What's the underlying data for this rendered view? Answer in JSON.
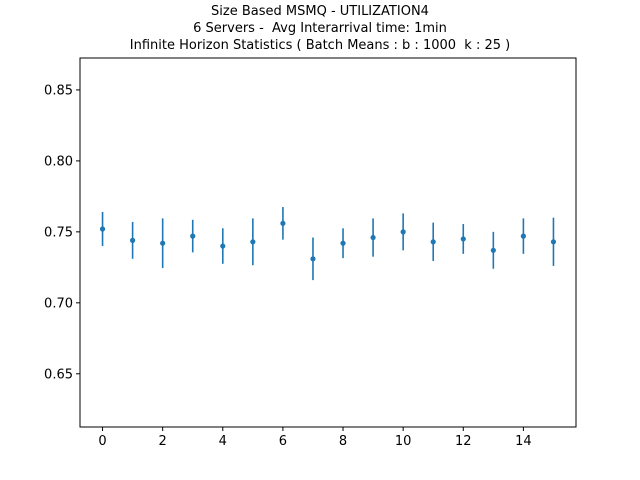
{
  "chart_data": {
    "type": "scatter",
    "title_lines": [
      "Size Based MSMQ - UTILIZATION4",
      "6 Servers -  Avg Interarrival time: 1min",
      "Infinite Horizon Statistics ( Batch Means : b : 1000  k : 25 )"
    ],
    "xlabel": "",
    "ylabel": "",
    "xlim": [
      -0.75,
      15.75
    ],
    "ylim": [
      0.6125,
      0.8725
    ],
    "xticks": [
      0,
      2,
      4,
      6,
      8,
      10,
      12,
      14
    ],
    "xtick_labels": [
      "0",
      "2",
      "4",
      "6",
      "8",
      "10",
      "12",
      "14"
    ],
    "yticks": [
      0.65,
      0.7,
      0.75,
      0.8,
      0.85
    ],
    "ytick_labels": [
      "0.65",
      "0.70",
      "0.75",
      "0.80",
      "0.85"
    ],
    "color": "#1f77b4",
    "grid": false,
    "points": [
      {
        "x": 0,
        "y": 0.752,
        "err": 0.012
      },
      {
        "x": 1,
        "y": 0.744,
        "err": 0.013
      },
      {
        "x": 2,
        "y": 0.742,
        "err": 0.0175
      },
      {
        "x": 3,
        "y": 0.747,
        "err": 0.0115
      },
      {
        "x": 4,
        "y": 0.74,
        "err": 0.0125
      },
      {
        "x": 5,
        "y": 0.743,
        "err": 0.0165
      },
      {
        "x": 6,
        "y": 0.756,
        "err": 0.0115
      },
      {
        "x": 7,
        "y": 0.731,
        "err": 0.015
      },
      {
        "x": 8,
        "y": 0.742,
        "err": 0.0105
      },
      {
        "x": 9,
        "y": 0.746,
        "err": 0.0135
      },
      {
        "x": 10,
        "y": 0.75,
        "err": 0.013
      },
      {
        "x": 11,
        "y": 0.743,
        "err": 0.0135
      },
      {
        "x": 12,
        "y": 0.745,
        "err": 0.0105
      },
      {
        "x": 13,
        "y": 0.737,
        "err": 0.013
      },
      {
        "x": 14,
        "y": 0.747,
        "err": 0.0125
      },
      {
        "x": 15,
        "y": 0.743,
        "err": 0.017
      }
    ]
  }
}
